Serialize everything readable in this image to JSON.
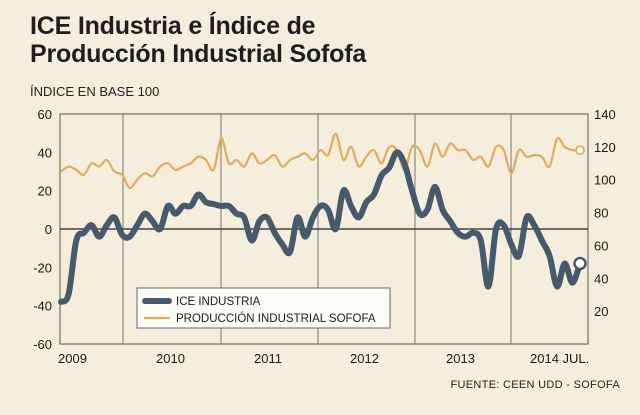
{
  "chart_data": {
    "type": "line",
    "title_line1": "ICE Industria e Índice de",
    "title_line2": "Producción Industrial Sofofa",
    "subtitle": "ÍNDICE EN BASE 100",
    "source": "FUENTE: CEEN UDD - SOFOFA",
    "x_labels": [
      "2009",
      "2010",
      "2011",
      "2012",
      "2013",
      "2014 JUL."
    ],
    "left_axis": {
      "ylim": [
        -60,
        60
      ],
      "ticks": [
        "60",
        "40",
        "20",
        "0",
        "-20",
        "-40",
        "-60"
      ]
    },
    "right_axis": {
      "ylim": [
        0,
        140
      ],
      "ticks": [
        "140",
        "120",
        "100",
        "80",
        "60",
        "40",
        "20"
      ]
    },
    "series": [
      {
        "name": "ICE INDUSTRIA",
        "axis": "left",
        "color": "#465a6b",
        "values": [
          -38,
          -34,
          -6,
          -2,
          2,
          -4,
          2,
          6,
          -3,
          -4,
          2,
          8,
          4,
          0,
          12,
          8,
          12,
          12,
          18,
          14,
          13,
          12,
          12,
          8,
          6,
          -6,
          4,
          6,
          -2,
          -8,
          -12,
          6,
          -4,
          6,
          12,
          10,
          0,
          20,
          12,
          6,
          14,
          18,
          28,
          32,
          40,
          34,
          20,
          8,
          10,
          22,
          10,
          4,
          -2,
          -4,
          -2,
          -6,
          -30,
          0,
          2,
          -8,
          -14,
          6,
          2,
          -6,
          -14,
          -30,
          -18,
          -28,
          -18
        ]
      },
      {
        "name": "PRODUCCIÓN INDUSTRIAL SOFOFA",
        "axis": "right",
        "color": "#e0ad5c",
        "values": [
          105,
          108,
          106,
          103,
          110,
          108,
          112,
          105,
          103,
          95,
          100,
          104,
          102,
          108,
          110,
          106,
          108,
          110,
          114,
          112,
          106,
          125,
          110,
          112,
          108,
          116,
          110,
          112,
          115,
          108,
          112,
          114,
          116,
          112,
          118,
          115,
          128,
          112,
          120,
          108,
          114,
          118,
          110,
          120,
          118,
          106,
          120,
          118,
          108,
          122,
          114,
          122,
          118,
          118,
          112,
          114,
          108,
          120,
          118,
          104,
          118,
          114,
          115,
          114,
          108,
          125,
          120,
          118,
          118
        ]
      }
    ]
  }
}
